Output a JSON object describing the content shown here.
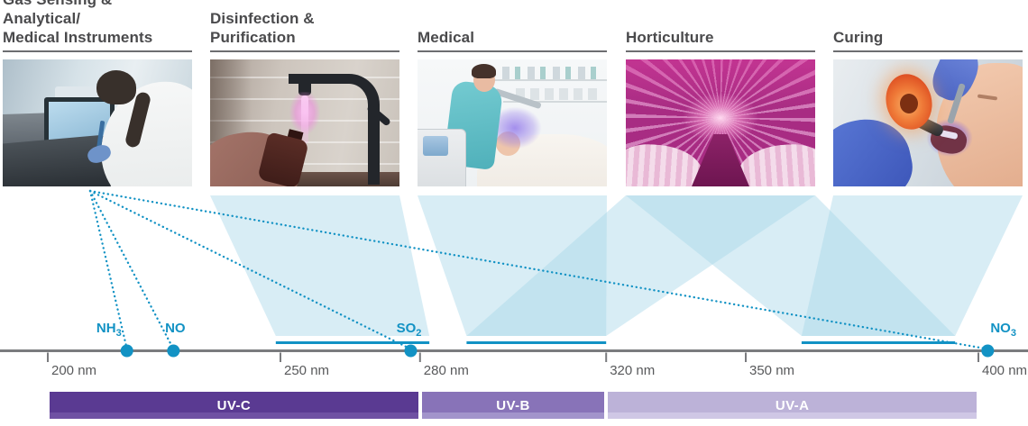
{
  "palette": {
    "teal": "#1292c4",
    "beam_fill": "#a8d8e8",
    "axis_gray": "#7a7b7e",
    "tick_text": "#58595b",
    "title_text": "#4a4a4c",
    "underline": "#6d6e71",
    "band_text": "#ffffff"
  },
  "categories": [
    {
      "id": "gas-sensing",
      "title": "Gas Sensing & Analytical/\nMedical Instruments"
    },
    {
      "id": "disinfection",
      "title": "Disinfection & Purification"
    },
    {
      "id": "medical",
      "title": "Medical"
    },
    {
      "id": "horticulture",
      "title": "Horticulture"
    },
    {
      "id": "curing",
      "title": "Curing"
    }
  ],
  "axis": {
    "unit": "nm",
    "range_nm": [
      200,
      400
    ],
    "ticks": [
      {
        "label": "200 nm",
        "nm": 200
      },
      {
        "label": "250 nm",
        "nm": 250
      },
      {
        "label": "280 nm",
        "nm": 280
      },
      {
        "label": "320 nm",
        "nm": 320
      },
      {
        "label": "350 nm",
        "nm": 350
      },
      {
        "label": "400 nm",
        "nm": 400
      }
    ]
  },
  "molecules": [
    {
      "formula": "NH",
      "subscript": "3",
      "nm": 217
    },
    {
      "formula": "NO",
      "subscript": "",
      "nm": 227
    },
    {
      "formula": "SO",
      "subscript": "2",
      "nm": 278
    },
    {
      "formula": "NO",
      "subscript": "3",
      "nm": 402
    }
  ],
  "segments": [
    {
      "from_nm": 249,
      "to_nm": 282
    },
    {
      "from_nm": 290,
      "to_nm": 320
    },
    {
      "from_nm": 362,
      "to_nm": 395
    }
  ],
  "beams": [
    {
      "category": 1,
      "segment": 0
    },
    {
      "category": 2,
      "segment": 1
    },
    {
      "category": 3,
      "segment": 1
    },
    {
      "category": 3,
      "segment": 2
    },
    {
      "category": 4,
      "segment": 2
    }
  ],
  "gas_lines": {
    "origin_category": 0,
    "molecule_targets": [
      0,
      1,
      2,
      3
    ]
  },
  "bands": [
    {
      "label": "UV-C",
      "from_nm": 200,
      "to_nm": 280,
      "color": "#5a3a92",
      "color_light": "#6f51a3"
    },
    {
      "label": "UV-B",
      "from_nm": 280,
      "to_nm": 320,
      "color": "#8873b8",
      "color_light": "#a294cb"
    },
    {
      "label": "UV-A",
      "from_nm": 320,
      "to_nm": 400,
      "color": "#bcb2d8",
      "color_light": "#cfc7e5"
    }
  ]
}
